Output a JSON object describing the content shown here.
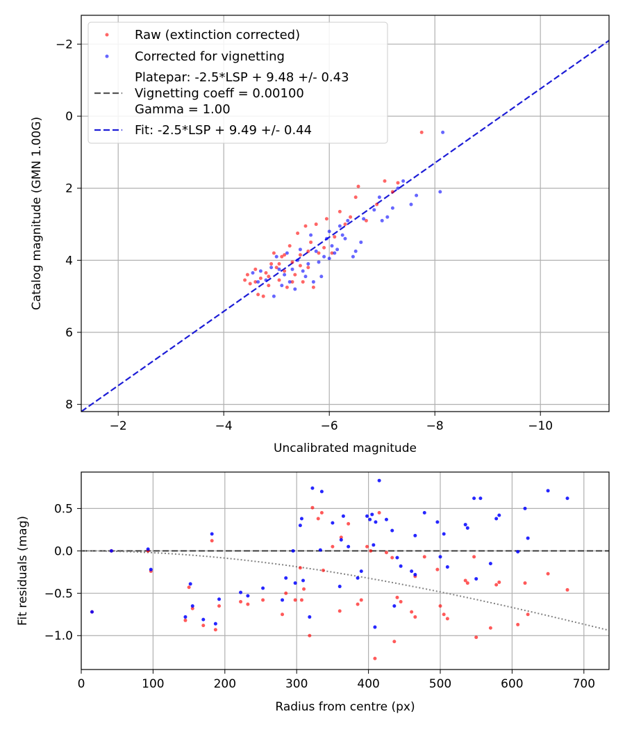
{
  "colors": {
    "raw": "#ff0000",
    "corrected": "#0000ff",
    "fit": "#1c1cd6",
    "platepar": "#555555",
    "grid": "#b0b0b0",
    "zero_line": "#3c3c3c",
    "vignetting_curve": "#808080"
  },
  "chart_data": [
    {
      "type": "scatter",
      "name": "calibration",
      "xlabel": "Uncalibrated magnitude",
      "ylabel": "Catalog magnitude (GMN 1.00G)",
      "xlim": [
        -1.3,
        -11.3
      ],
      "ylim": [
        8.2,
        -2.8
      ],
      "xticks": [
        -2,
        -4,
        -6,
        -8,
        -10
      ],
      "xtick_labels": [
        "−2",
        "−4",
        "−6",
        "−8",
        "−10"
      ],
      "yticks": [
        -2,
        0,
        2,
        4,
        6,
        8
      ],
      "ytick_labels": [
        "−2",
        "0",
        "2",
        "4",
        "6",
        "8"
      ],
      "grid": true,
      "legend_position": "top-left",
      "legend": {
        "raw": "Raw (extinction corrected)",
        "corrected": "Corrected for vignetting",
        "platepar_line1": "Platepar: -2.5*LSP + 9.48 +/- 0.43",
        "platepar_line2": "Vignetting coeff = 0.00100",
        "platepar_line3": "Gamma = 1.00",
        "fit": "Fit: -2.5*LSP + 9.49 +/- 0.44"
      },
      "series": [
        {
          "name": "Raw (extinction corrected)",
          "points": [
            [
              -4.4,
              4.55
            ],
            [
              -4.45,
              4.4
            ],
            [
              -4.5,
              4.65
            ],
            [
              -4.6,
              4.25
            ],
            [
              -4.65,
              4.95
            ],
            [
              -4.7,
              4.5
            ],
            [
              -4.75,
              5.0
            ],
            [
              -4.8,
              4.35
            ],
            [
              -4.85,
              4.7
            ],
            [
              -4.9,
              4.1
            ],
            [
              -4.95,
              3.8
            ],
            [
              -5.0,
              4.2
            ],
            [
              -5.05,
              4.55
            ],
            [
              -5.1,
              3.9
            ],
            [
              -5.15,
              4.3
            ],
            [
              -5.2,
              4.75
            ],
            [
              -5.25,
              3.6
            ],
            [
              -5.3,
              4.05
            ],
            [
              -5.35,
              4.4
            ],
            [
              -5.4,
              3.25
            ],
            [
              -5.45,
              3.85
            ],
            [
              -5.5,
              4.6
            ],
            [
              -5.55,
              3.05
            ],
            [
              -5.6,
              4.2
            ],
            [
              -5.65,
              3.5
            ],
            [
              -5.7,
              4.75
            ],
            [
              -5.75,
              3.0
            ],
            [
              -5.8,
              3.8
            ],
            [
              -5.9,
              3.65
            ],
            [
              -5.95,
              2.85
            ],
            [
              -6.05,
              3.8
            ],
            [
              -6.1,
              3.35
            ],
            [
              -6.2,
              2.65
            ],
            [
              -6.3,
              3.0
            ],
            [
              -6.4,
              2.8
            ],
            [
              -6.5,
              2.25
            ],
            [
              -6.55,
              1.95
            ],
            [
              -6.7,
              2.9
            ],
            [
              -6.9,
              2.45
            ],
            [
              -7.05,
              1.8
            ],
            [
              -7.2,
              2.1
            ],
            [
              -7.3,
              1.85
            ],
            [
              -7.75,
              0.45
            ],
            [
              -4.85,
              4.45
            ],
            [
              -5.15,
              3.85
            ],
            [
              -5.05,
              4.1
            ],
            [
              -5.3,
              4.6
            ],
            [
              -5.6,
              3.75
            ],
            [
              -4.6,
              4.6
            ],
            [
              -5.45,
              4.15
            ]
          ]
        },
        {
          "name": "Corrected for vignetting",
          "points": [
            [
              -4.55,
              4.35
            ],
            [
              -4.7,
              4.3
            ],
            [
              -4.8,
              4.55
            ],
            [
              -4.9,
              4.2
            ],
            [
              -4.95,
              5.0
            ],
            [
              -5.0,
              3.9
            ],
            [
              -5.1,
              4.7
            ],
            [
              -5.15,
              4.4
            ],
            [
              -5.2,
              3.8
            ],
            [
              -5.3,
              4.25
            ],
            [
              -5.35,
              4.8
            ],
            [
              -5.45,
              3.7
            ],
            [
              -5.5,
              4.3
            ],
            [
              -5.6,
              4.1
            ],
            [
              -5.65,
              3.3
            ],
            [
              -5.7,
              4.6
            ],
            [
              -5.75,
              3.75
            ],
            [
              -5.8,
              4.05
            ],
            [
              -5.9,
              3.9
            ],
            [
              -5.95,
              3.4
            ],
            [
              -6.0,
              3.95
            ],
            [
              -6.05,
              3.6
            ],
            [
              -6.15,
              3.7
            ],
            [
              -6.2,
              3.05
            ],
            [
              -6.3,
              3.4
            ],
            [
              -6.35,
              2.9
            ],
            [
              -6.45,
              3.9
            ],
            [
              -6.5,
              3.75
            ],
            [
              -6.6,
              3.5
            ],
            [
              -6.65,
              2.85
            ],
            [
              -6.85,
              2.6
            ],
            [
              -6.95,
              2.25
            ],
            [
              -7.0,
              2.9
            ],
            [
              -7.1,
              2.8
            ],
            [
              -7.2,
              2.55
            ],
            [
              -7.3,
              2.0
            ],
            [
              -7.4,
              1.8
            ],
            [
              -7.55,
              2.45
            ],
            [
              -7.65,
              2.2
            ],
            [
              -8.1,
              2.1
            ],
            [
              -8.15,
              0.45
            ],
            [
              -5.25,
              4.6
            ],
            [
              -5.55,
              4.45
            ],
            [
              -6.0,
              3.2
            ],
            [
              -4.65,
              4.6
            ],
            [
              -5.05,
              4.25
            ],
            [
              -5.85,
              4.45
            ],
            [
              -6.25,
              3.3
            ],
            [
              -5.4,
              4.0
            ],
            [
              -6.1,
              3.8
            ]
          ]
        },
        {
          "name": "Fit: -2.5*LSP + 9.49 +/- 0.44",
          "kind": "dashed-line",
          "points": [
            [
              -1.3,
              8.2
            ],
            [
              -11.3,
              -2.1
            ]
          ]
        }
      ]
    },
    {
      "type": "scatter",
      "name": "residuals",
      "xlabel": "Radius from centre (px)",
      "ylabel": "Fit residuals (mag)",
      "xlim": [
        0,
        735
      ],
      "ylim": [
        -1.4,
        0.93
      ],
      "xticks": [
        0,
        100,
        200,
        300,
        400,
        500,
        600,
        700
      ],
      "xtick_labels": [
        "0",
        "100",
        "200",
        "300",
        "400",
        "500",
        "600",
        "700"
      ],
      "yticks": [
        -1.0,
        -0.5,
        0.0,
        0.5
      ],
      "ytick_labels": [
        "−1.0",
        "−0.5",
        "0.0",
        "0.5"
      ],
      "grid": true,
      "reference_lines": {
        "zero": 0.0,
        "vignetting_coeff": 0.001
      },
      "series": [
        {
          "name": "raw_residuals",
          "points": [
            [
              15,
              -0.72
            ],
            [
              42,
              0.0
            ],
            [
              93,
              0.0
            ],
            [
              97,
              -0.24
            ],
            [
              145,
              -0.82
            ],
            [
              150,
              -0.43
            ],
            [
              155,
              -0.68
            ],
            [
              170,
              -0.88
            ],
            [
              182,
              0.12
            ],
            [
              187,
              -0.93
            ],
            [
              192,
              -0.65
            ],
            [
              222,
              -0.6
            ],
            [
              232,
              -0.63
            ],
            [
              253,
              -0.58
            ],
            [
              280,
              -0.75
            ],
            [
              285,
              -0.5
            ],
            [
              298,
              -0.58
            ],
            [
              305,
              -0.2
            ],
            [
              307,
              -0.58
            ],
            [
              310,
              -0.45
            ],
            [
              318,
              -1.0
            ],
            [
              322,
              0.51
            ],
            [
              335,
              0.45
            ],
            [
              337,
              -0.23
            ],
            [
              350,
              0.05
            ],
            [
              360,
              -0.71
            ],
            [
              362,
              0.16
            ],
            [
              372,
              0.32
            ],
            [
              385,
              -0.63
            ],
            [
              390,
              -0.58
            ],
            [
              398,
              0.05
            ],
            [
              403,
              0.0
            ],
            [
              409,
              -1.27
            ],
            [
              415,
              0.45
            ],
            [
              425,
              -0.02
            ],
            [
              433,
              -0.08
            ],
            [
              436,
              -1.07
            ],
            [
              440,
              -0.55
            ],
            [
              445,
              -0.6
            ],
            [
              460,
              -0.72
            ],
            [
              465,
              -0.78
            ],
            [
              478,
              -0.07
            ],
            [
              496,
              -0.22
            ],
            [
              500,
              -0.65
            ],
            [
              505,
              -0.75
            ],
            [
              510,
              -0.8
            ],
            [
              535,
              -0.35
            ],
            [
              538,
              -0.38
            ],
            [
              547,
              -0.07
            ],
            [
              550,
              -1.02
            ],
            [
              570,
              -0.91
            ],
            [
              578,
              -0.4
            ],
            [
              582,
              -0.37
            ],
            [
              608,
              -0.87
            ],
            [
              618,
              -0.38
            ],
            [
              622,
              -0.75
            ],
            [
              650,
              -0.27
            ],
            [
              677,
              -0.46
            ],
            [
              330,
              0.38
            ],
            [
              465,
              -0.3
            ]
          ]
        },
        {
          "name": "corrected_residuals",
          "points": [
            [
              15,
              -0.72
            ],
            [
              42,
              0.0
            ],
            [
              93,
              0.02
            ],
            [
              97,
              -0.22
            ],
            [
              145,
              -0.78
            ],
            [
              152,
              -0.39
            ],
            [
              155,
              -0.65
            ],
            [
              170,
              -0.81
            ],
            [
              182,
              0.2
            ],
            [
              187,
              -0.86
            ],
            [
              192,
              -0.57
            ],
            [
              222,
              -0.49
            ],
            [
              232,
              -0.53
            ],
            [
              253,
              -0.44
            ],
            [
              280,
              -0.58
            ],
            [
              285,
              -0.32
            ],
            [
              295,
              0.0
            ],
            [
              298,
              -0.38
            ],
            [
              305,
              0.3
            ],
            [
              307,
              0.38
            ],
            [
              309,
              -0.35
            ],
            [
              318,
              -0.78
            ],
            [
              322,
              0.74
            ],
            [
              335,
              0.7
            ],
            [
              333,
              0.01
            ],
            [
              350,
              0.33
            ],
            [
              360,
              -0.42
            ],
            [
              362,
              0.13
            ],
            [
              365,
              0.41
            ],
            [
              372,
              0.05
            ],
            [
              385,
              -0.32
            ],
            [
              390,
              -0.24
            ],
            [
              398,
              0.41
            ],
            [
              402,
              0.37
            ],
            [
              405,
              0.43
            ],
            [
              407,
              0.07
            ],
            [
              409,
              -0.9
            ],
            [
              410,
              0.34
            ],
            [
              415,
              0.83
            ],
            [
              425,
              0.37
            ],
            [
              433,
              0.24
            ],
            [
              436,
              -0.65
            ],
            [
              440,
              -0.08
            ],
            [
              445,
              -0.18
            ],
            [
              460,
              -0.24
            ],
            [
              465,
              -0.28
            ],
            [
              478,
              0.45
            ],
            [
              496,
              0.34
            ],
            [
              500,
              -0.07
            ],
            [
              505,
              0.2
            ],
            [
              510,
              -0.19
            ],
            [
              535,
              0.31
            ],
            [
              538,
              0.27
            ],
            [
              547,
              0.62
            ],
            [
              550,
              -0.33
            ],
            [
              556,
              0.62
            ],
            [
              570,
              -0.15
            ],
            [
              578,
              0.38
            ],
            [
              582,
              0.42
            ],
            [
              608,
              -0.01
            ],
            [
              618,
              0.5
            ],
            [
              622,
              0.15
            ],
            [
              650,
              0.71
            ],
            [
              677,
              0.62
            ],
            [
              465,
              0.18
            ]
          ]
        }
      ]
    }
  ]
}
